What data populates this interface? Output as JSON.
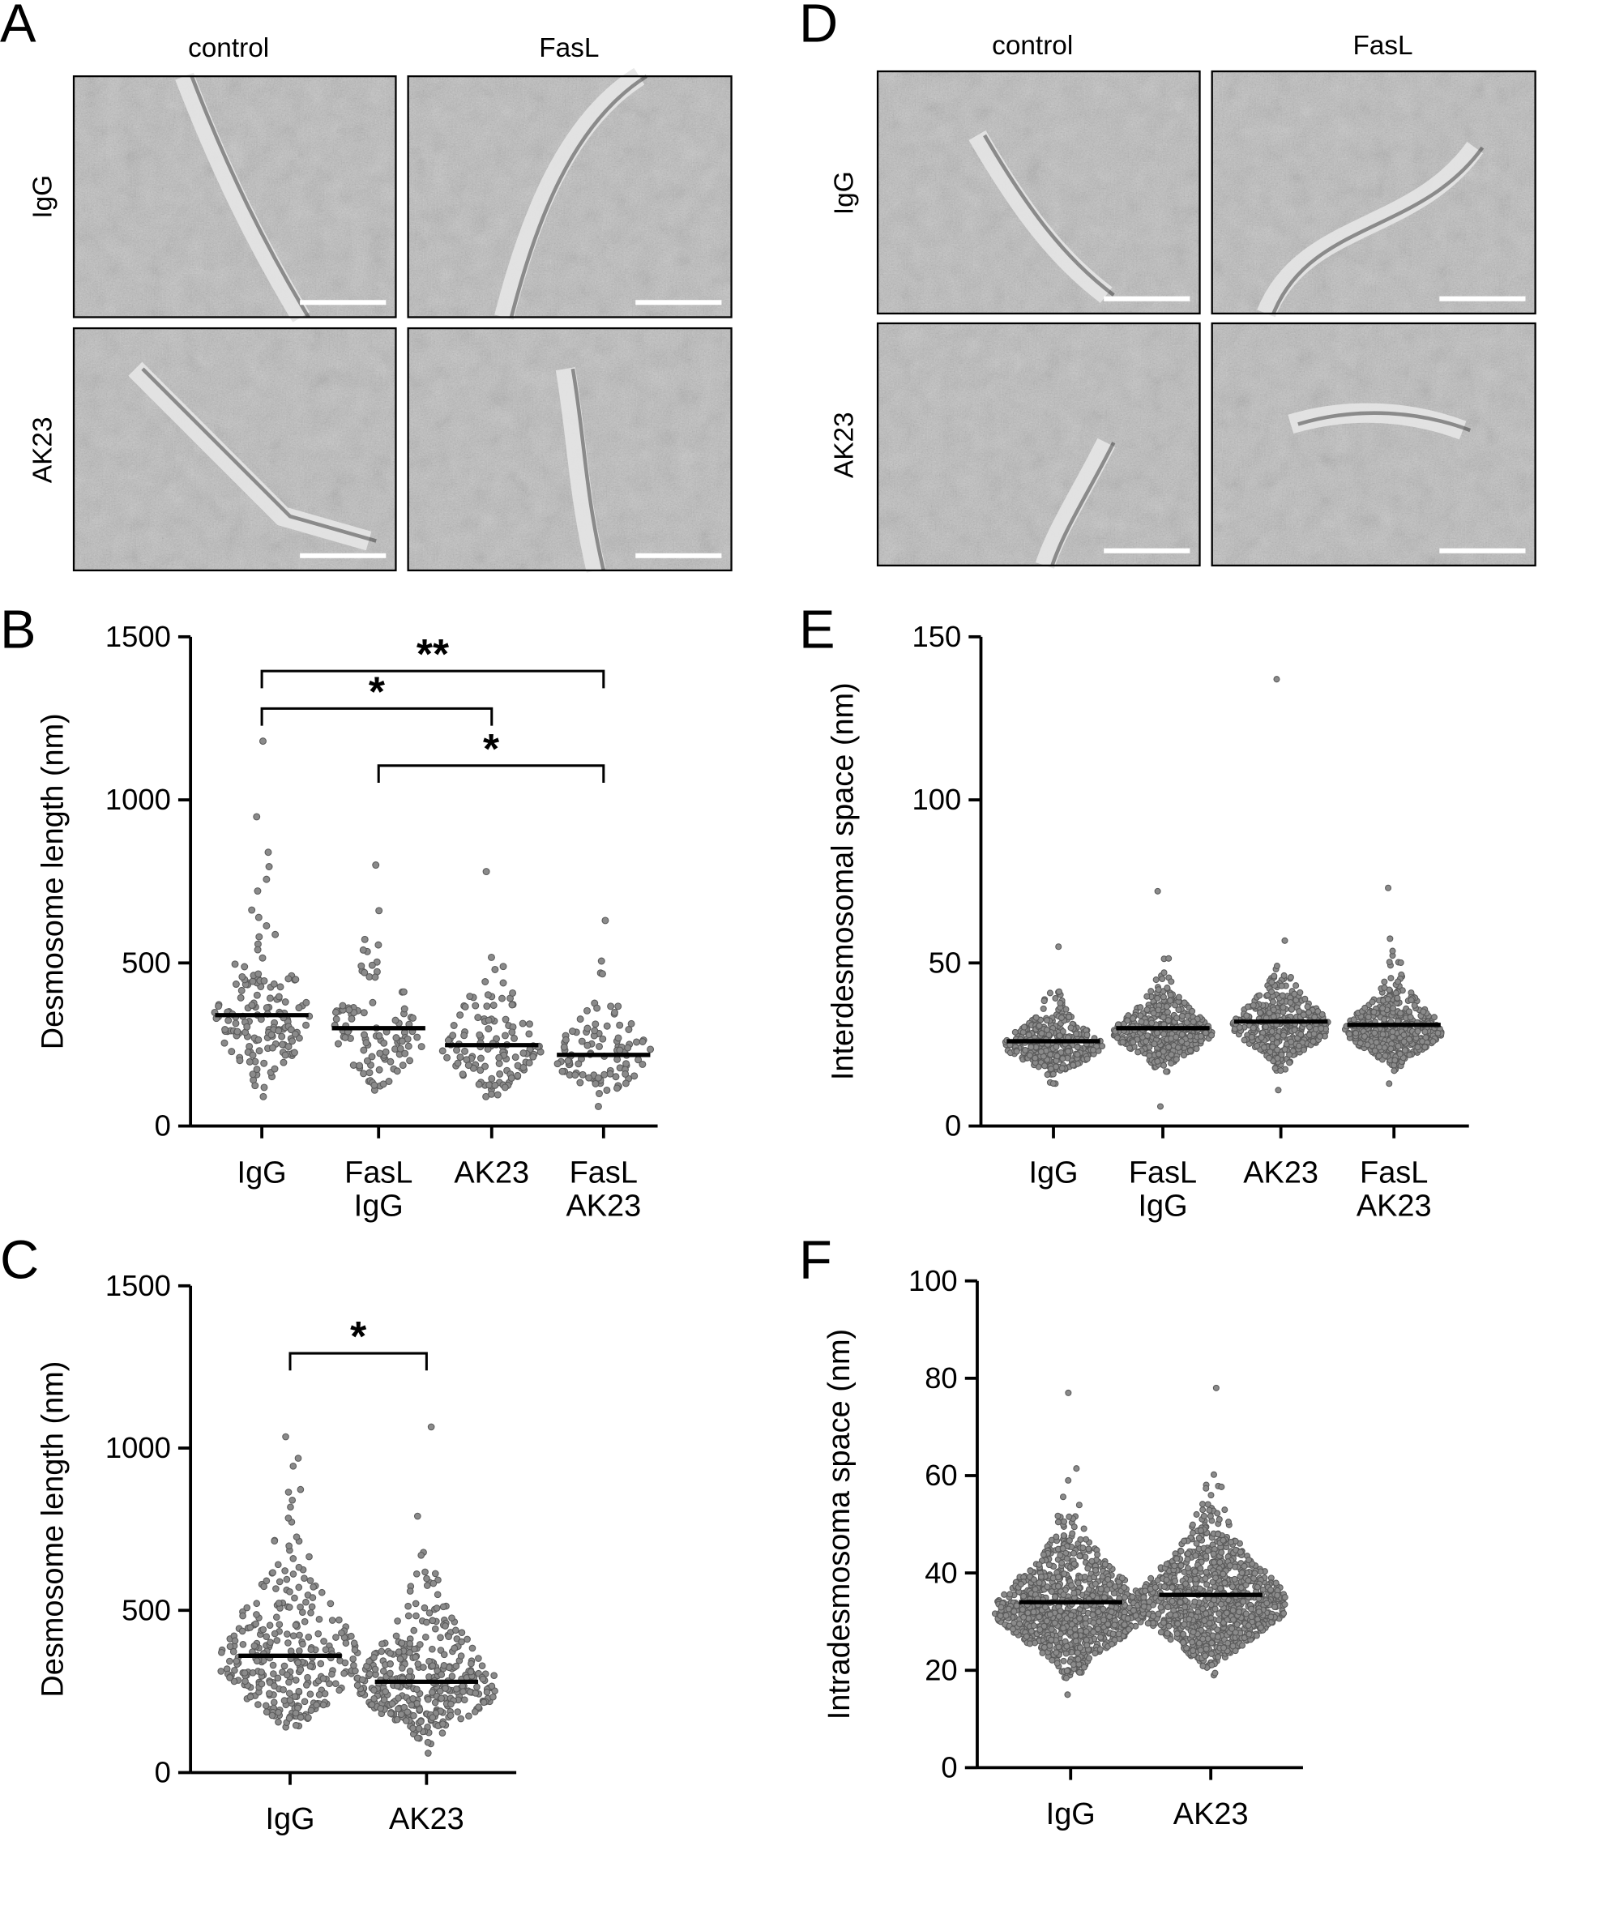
{
  "panels": {
    "A": {
      "letter": "A",
      "columns": [
        "control",
        "FasL"
      ],
      "rows": [
        "IgG",
        "AK23"
      ]
    },
    "D": {
      "letter": "D",
      "columns": [
        "control",
        "FasL"
      ],
      "rows": [
        "IgG",
        "AK23"
      ]
    }
  },
  "colors": {
    "dot_fill": "#8a8a8a",
    "dot_stroke": "#5a5a5a",
    "axis": "#000000"
  },
  "chart_data": [
    {
      "id": "B",
      "letter": "B",
      "type": "scatter",
      "ylabel": "Desmosome length (nm)",
      "ylim": [
        0,
        1500
      ],
      "yticks": [
        0,
        500,
        1000,
        1500
      ],
      "categories": [
        [
          "IgG"
        ],
        [
          "FasL",
          "IgG"
        ],
        [
          "AK23"
        ],
        [
          "FasL",
          "AK23"
        ]
      ],
      "series": [
        {
          "name": "IgG",
          "n": 150,
          "min": 90,
          "max": 1180,
          "mean": 340
        },
        {
          "name": "FasL IgG",
          "n": 100,
          "min": 110,
          "max": 800,
          "mean": 300
        },
        {
          "name": "AK23",
          "n": 120,
          "min": 90,
          "max": 780,
          "mean": 248
        },
        {
          "name": "FasL AK23",
          "n": 100,
          "min": 60,
          "max": 630,
          "mean": 218
        }
      ],
      "significance": [
        {
          "from": 0,
          "to": 3,
          "level": 1395,
          "label": "**"
        },
        {
          "from": 0,
          "to": 2,
          "level": 1280,
          "label": "*"
        },
        {
          "from": 1,
          "to": 3,
          "level": 1105,
          "label": "*"
        }
      ]
    },
    {
      "id": "E",
      "letter": "E",
      "type": "scatter",
      "ylabel": "Interdesmosomal space (nm)",
      "ylim": [
        0,
        150
      ],
      "yticks": [
        0,
        50,
        100,
        150
      ],
      "categories": [
        [
          "IgG"
        ],
        [
          "FasL",
          "IgG"
        ],
        [
          "AK23"
        ],
        [
          "FasL",
          "AK23"
        ]
      ],
      "series": [
        {
          "name": "IgG",
          "n": 380,
          "min": 13,
          "max": 55,
          "mean": 26
        },
        {
          "name": "FasL IgG",
          "n": 420,
          "min": 6,
          "max": 72,
          "mean": 30
        },
        {
          "name": "AK23",
          "n": 420,
          "min": 11,
          "max": 137,
          "mean": 32
        },
        {
          "name": "FasL AK23",
          "n": 450,
          "min": 13,
          "max": 73,
          "mean": 31
        }
      ],
      "significance": []
    },
    {
      "id": "C",
      "letter": "C",
      "type": "scatter",
      "ylabel": "Desmosome length (nm)",
      "ylim": [
        0,
        1500
      ],
      "yticks": [
        0,
        500,
        1000,
        1500
      ],
      "categories": [
        [
          "IgG"
        ],
        [
          "AK23"
        ]
      ],
      "series": [
        {
          "name": "IgG",
          "n": 300,
          "min": 140,
          "max": 1035,
          "mean": 360
        },
        {
          "name": "AK23",
          "n": 360,
          "min": 60,
          "max": 1065,
          "mean": 280
        }
      ],
      "significance": [
        {
          "from": 0,
          "to": 1,
          "level": 1292,
          "label": "*"
        }
      ]
    },
    {
      "id": "F",
      "letter": "F",
      "type": "scatter",
      "ylabel": "Intradesmosoma space (nm)",
      "ylim": [
        0,
        100
      ],
      "yticks": [
        0,
        20,
        40,
        60,
        80,
        100
      ],
      "categories": [
        [
          "IgG"
        ],
        [
          "AK23"
        ]
      ],
      "series": [
        {
          "name": "IgG",
          "n": 1000,
          "min": 15,
          "max": 77,
          "mean": 34
        },
        {
          "name": "AK23",
          "n": 1000,
          "min": 19,
          "max": 78,
          "mean": 35.5
        }
      ],
      "significance": []
    }
  ]
}
